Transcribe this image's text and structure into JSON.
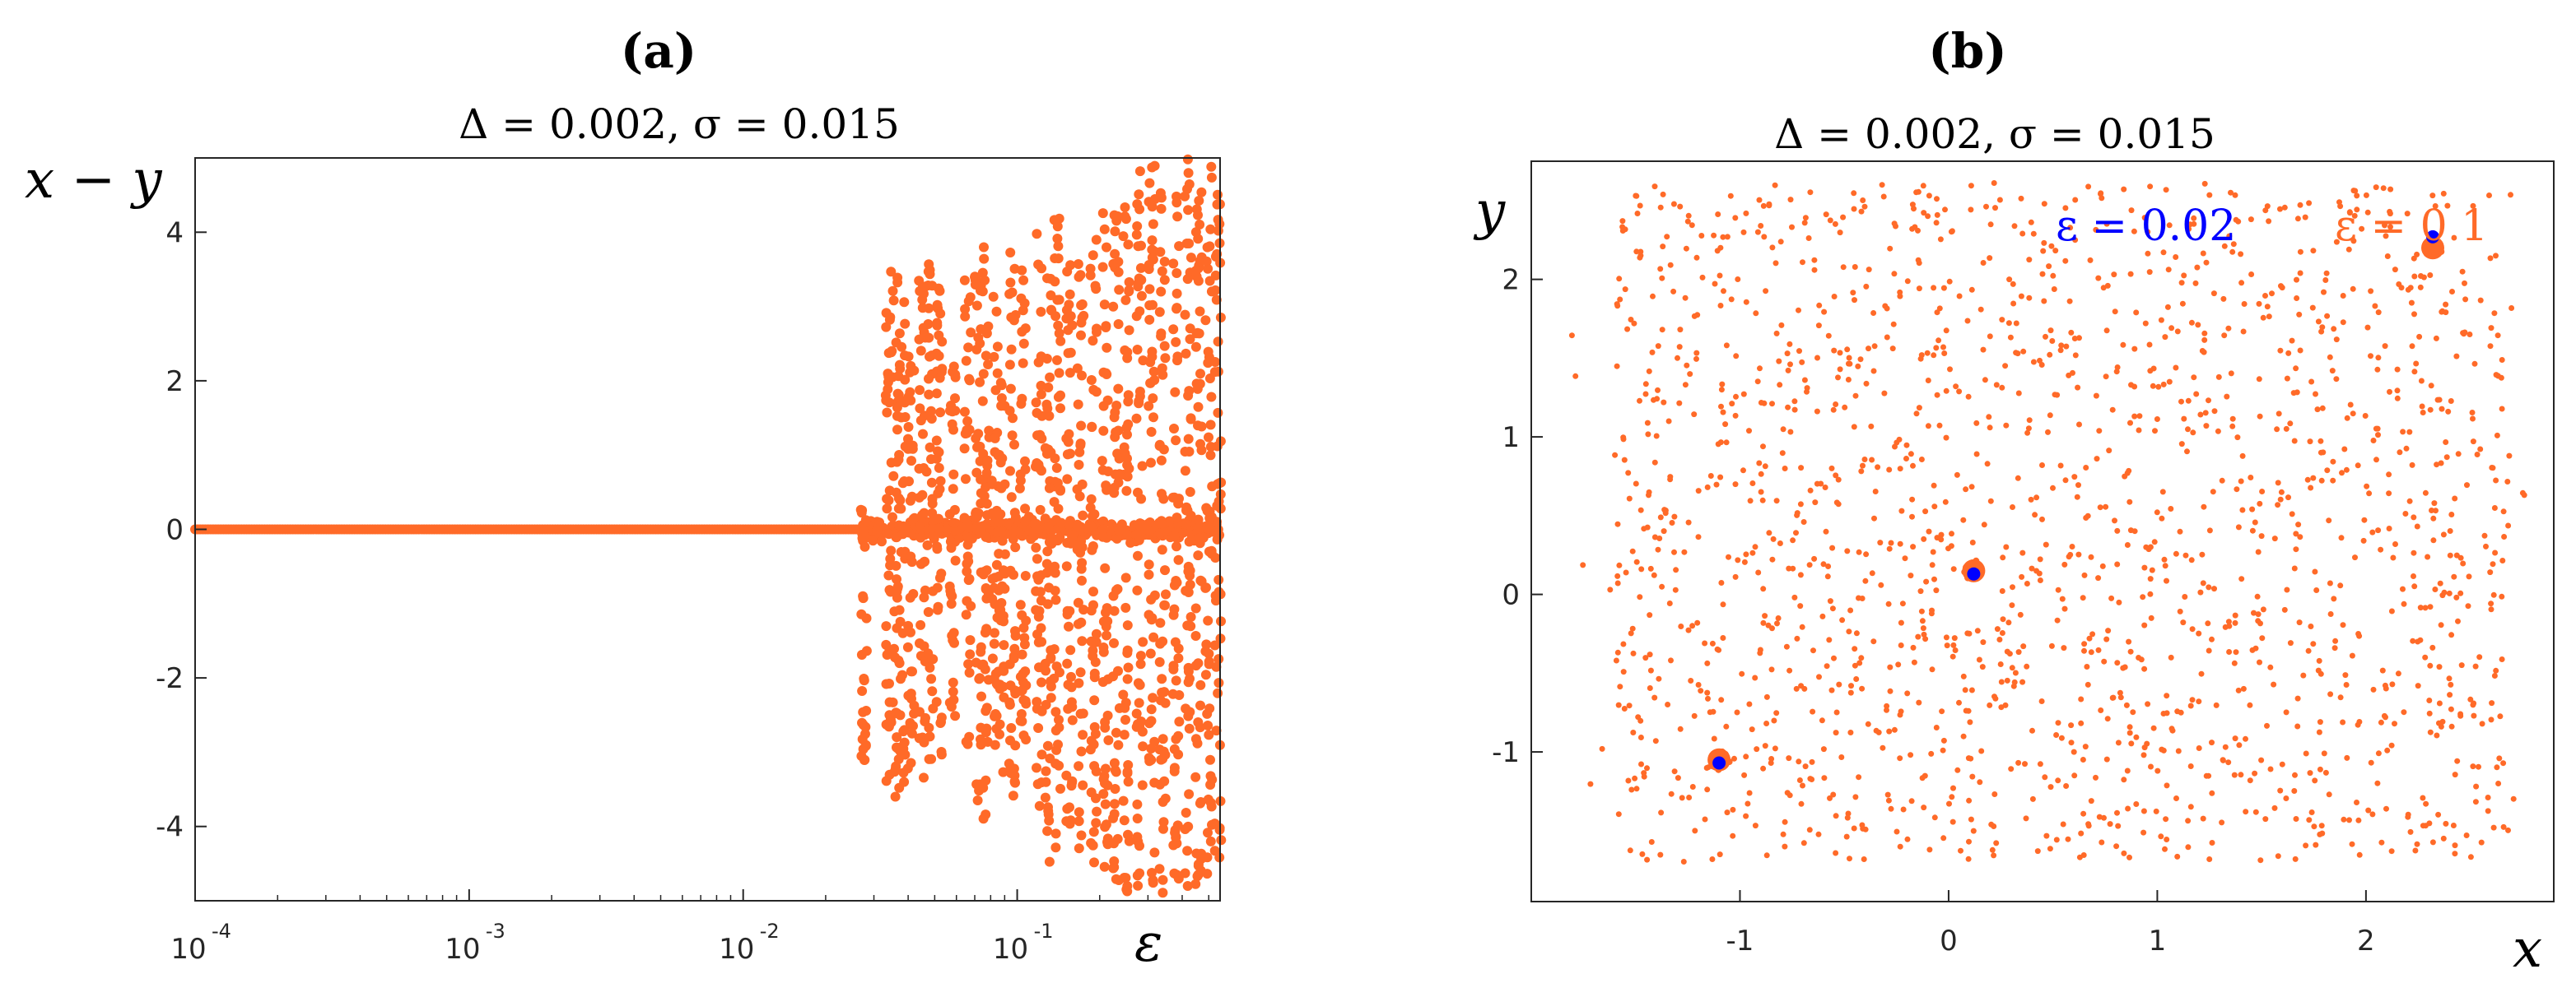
{
  "chart_data": [
    {
      "type": "scatter",
      "panel_label": "(a)",
      "title": "Δ = 0.002, σ = 0.015",
      "xlabel": "ε",
      "ylabel": "x − y",
      "xscale": "log",
      "xlim": [
        0.0001,
        0.55
      ],
      "ylim": [
        -5,
        5
      ],
      "xticks": [
        {
          "base": "10",
          "exp": "-4",
          "value": 0.0001
        },
        {
          "base": "10",
          "exp": "-3",
          "value": 0.001
        },
        {
          "base": "10",
          "exp": "-2",
          "value": 0.01
        },
        {
          "base": "10",
          "exp": "-1",
          "value": 0.1
        }
      ],
      "yticks": [
        {
          "label": "4",
          "value": 4
        },
        {
          "label": "2",
          "value": 2
        },
        {
          "label": "0",
          "value": 0
        },
        {
          "label": "-2",
          "value": -2
        },
        {
          "label": "-4",
          "value": -4
        }
      ],
      "grid": false,
      "marker_color": "#FF6A28",
      "series": [
        {
          "description": "x − y vs ε",
          "synchronized_range": {
            "x_from": 0.0001,
            "x_to": 0.027,
            "y": 0
          },
          "desynchronized_onset": 0.027,
          "bands": [
            {
              "x": 0.0275,
              "ymin": -3.2,
              "ymax": 0.3
            },
            {
              "x": 0.034,
              "ymin": -3.4,
              "ymax": 3.6
            },
            {
              "x": 0.036,
              "ymin": -3.6,
              "ymax": 3.5
            },
            {
              "x": 0.038,
              "ymin": -3.5,
              "ymax": 3.4
            },
            {
              "x": 0.041,
              "ymin": -3.6,
              "ymax": 2.4
            },
            {
              "x": 0.045,
              "ymin": -3.4,
              "ymax": 3.5
            },
            {
              "x": 0.048,
              "ymin": -3.6,
              "ymax": 3.6
            },
            {
              "x": 0.052,
              "ymin": -3.2,
              "ymax": 3.4
            },
            {
              "x": 0.058,
              "ymin": -2.7,
              "ymax": 2.3
            },
            {
              "x": 0.066,
              "ymin": -3.0,
              "ymax": 3.4
            },
            {
              "x": 0.072,
              "ymin": -3.7,
              "ymax": 3.6
            },
            {
              "x": 0.077,
              "ymin": -4.0,
              "ymax": 3.8
            },
            {
              "x": 0.083,
              "ymin": -3.1,
              "ymax": 3.3
            },
            {
              "x": 0.088,
              "ymin": -3.9,
              "ymax": 2.1
            },
            {
              "x": 0.096,
              "ymin": -3.6,
              "ymax": 3.9
            },
            {
              "x": 0.105,
              "ymin": -3.2,
              "ymax": 3.7
            },
            {
              "x": 0.12,
              "ymin": -4.0,
              "ymax": 4.0
            },
            {
              "x": 0.13,
              "ymin": -4.5,
              "ymax": 3.7
            },
            {
              "x": 0.14,
              "ymin": -4.3,
              "ymax": 4.2
            },
            {
              "x": 0.155,
              "ymin": -4.4,
              "ymax": 3.8
            },
            {
              "x": 0.17,
              "ymin": -4.5,
              "ymax": 3.6
            },
            {
              "x": 0.19,
              "ymin": -4.6,
              "ymax": 4.1
            },
            {
              "x": 0.21,
              "ymin": -4.7,
              "ymax": 4.5
            },
            {
              "x": 0.23,
              "ymin": -4.8,
              "ymax": 4.3
            },
            {
              "x": 0.25,
              "ymin": -4.9,
              "ymax": 4.6
            },
            {
              "x": 0.28,
              "ymin": -4.9,
              "ymax": 4.9
            },
            {
              "x": 0.31,
              "ymin": -4.8,
              "ymax": 4.9
            },
            {
              "x": 0.34,
              "ymin": -4.9,
              "ymax": 5.0
            },
            {
              "x": 0.38,
              "ymin": -5.0,
              "ymax": 4.8
            },
            {
              "x": 0.42,
              "ymin": -4.9,
              "ymax": 5.0
            },
            {
              "x": 0.46,
              "ymin": -5.0,
              "ymax": 4.9
            },
            {
              "x": 0.5,
              "ymin": -4.7,
              "ymax": 5.0
            },
            {
              "x": 0.54,
              "ymin": -4.5,
              "ymax": 4.7
            }
          ]
        }
      ]
    },
    {
      "type": "scatter",
      "panel_label": "(b)",
      "title": "Δ = 0.002, σ = 0.015",
      "xlabel": "x",
      "ylabel": "y",
      "xlim": [
        -2.0,
        2.9
      ],
      "ylim": [
        -1.95,
        2.75
      ],
      "xticks": [
        {
          "label": "-1",
          "value": -1
        },
        {
          "label": "0",
          "value": 0
        },
        {
          "label": "1",
          "value": 1
        },
        {
          "label": "2",
          "value": 2
        }
      ],
      "yticks": [
        {
          "label": "2",
          "value": 2
        },
        {
          "label": "1",
          "value": 1
        },
        {
          "label": "0",
          "value": 0
        },
        {
          "label": "-1",
          "value": -1
        }
      ],
      "grid": false,
      "legend_placement": "top-right",
      "series": [
        {
          "name": "ε = 0.1",
          "color": "#FF6A28",
          "point_count_estimate": 1600,
          "region": {
            "xmin": -1.9,
            "xmax": 2.8,
            "ymin": -1.8,
            "ymax": 2.7
          },
          "clusters": [
            {
              "x": -1.1,
              "y": -1.05
            },
            {
              "x": 0.12,
              "y": 0.15
            },
            {
              "x": 2.32,
              "y": 2.2
            }
          ]
        },
        {
          "name": "ε = 0.02",
          "color": "#0000FF",
          "points": [
            {
              "x": -1.1,
              "y": -1.07
            },
            {
              "x": 0.12,
              "y": 0.13
            },
            {
              "x": 2.32,
              "y": 2.27
            }
          ]
        }
      ]
    }
  ]
}
